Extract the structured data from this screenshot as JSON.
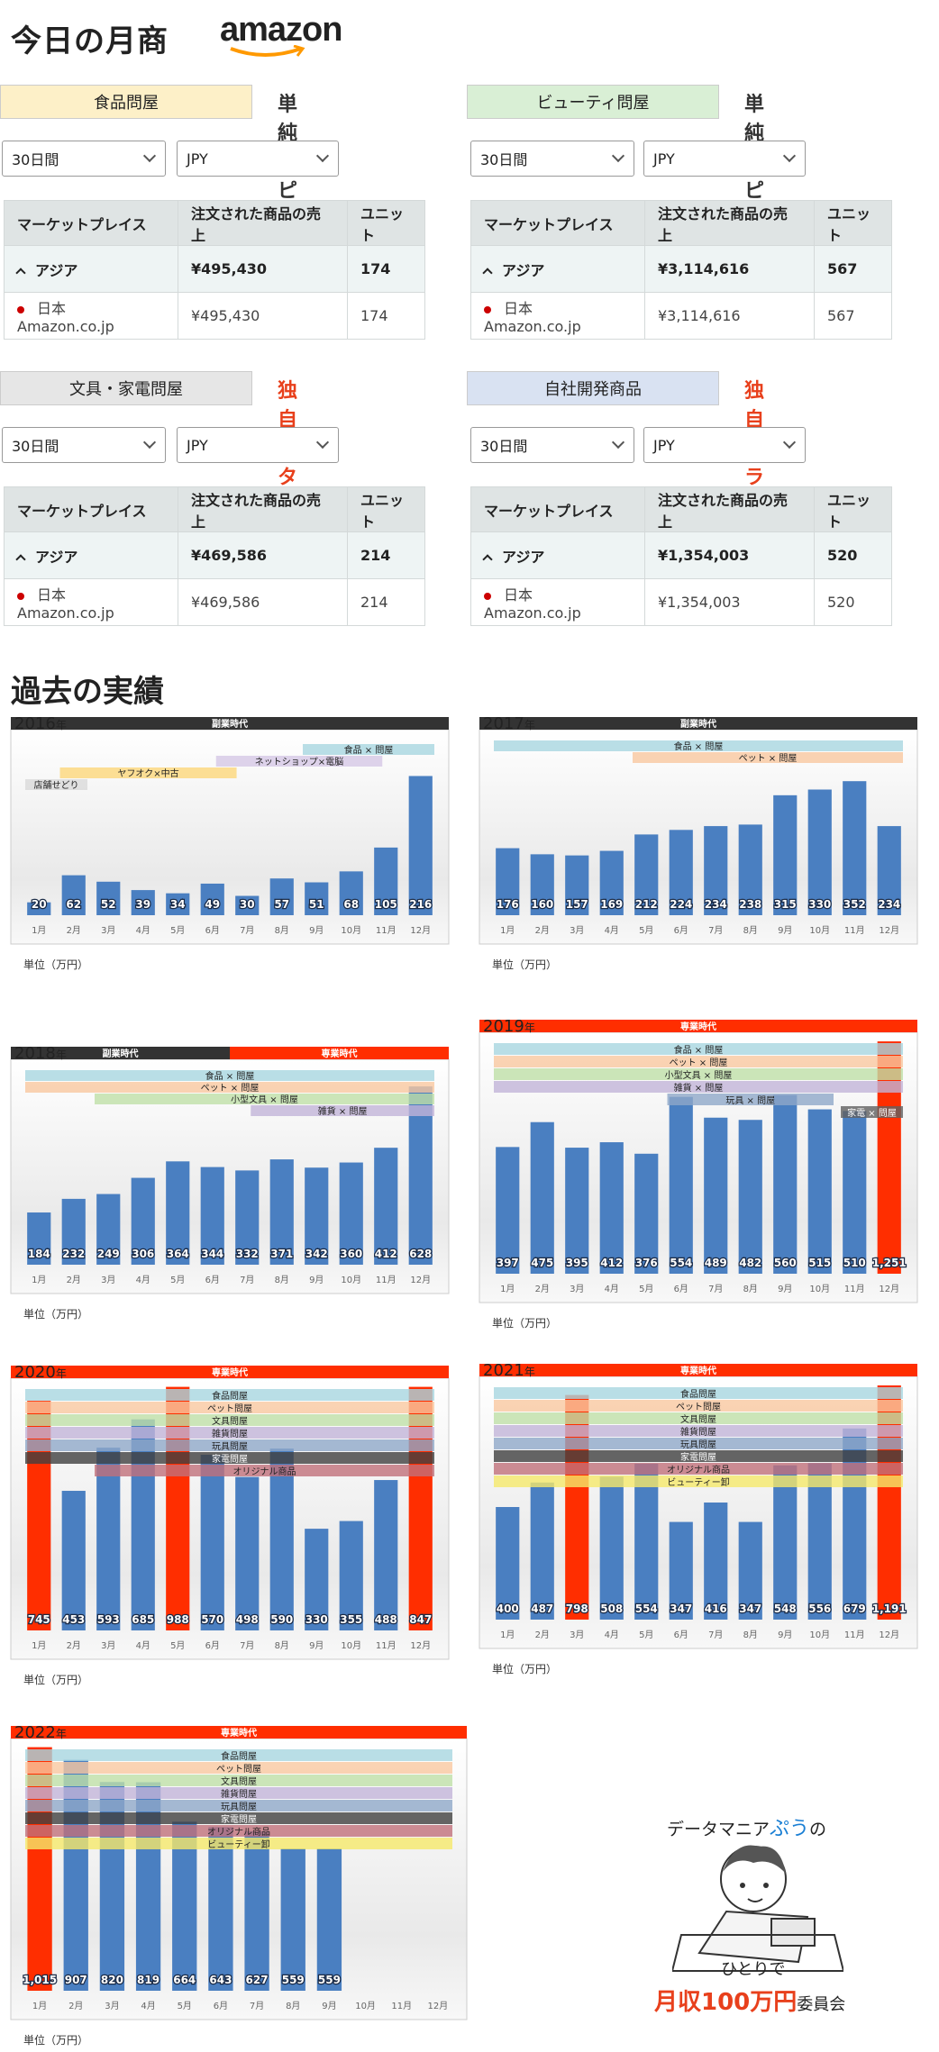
{
  "header": {
    "title": "今日の月商",
    "brand": "amazon"
  },
  "panels": [
    {
      "category": "食品問屋",
      "category_color": "#fdf0c8",
      "tag": "単純リピート",
      "tag_color": "#333333",
      "period": "30日間",
      "currency": "JPY",
      "columns": [
        "マーケットプレイス",
        "注文された商品の売上",
        "ユニット"
      ],
      "asia": {
        "name": "アジア",
        "sales": "¥495,430",
        "units": "174"
      },
      "jp": {
        "name": "日本 Amazon.co.jp",
        "sales": "¥495,430",
        "units": "174"
      }
    },
    {
      "category": "ビューティ問屋",
      "category_color": "#d9efd5",
      "tag": "単純リピート",
      "tag_color": "#333333",
      "period": "30日間",
      "currency": "JPY",
      "columns": [
        "マーケットプレイス",
        "注文された商品の売上",
        "ユニット"
      ],
      "asia": {
        "name": "アジア",
        "sales": "¥3,114,616",
        "units": "567"
      },
      "jp": {
        "name": "日本 Amazon.co.jp",
        "sales": "¥3,114,616",
        "units": "567"
      }
    },
    {
      "category": "文具・家電問屋",
      "category_color": "#e6e6e6",
      "tag": "独自カタログ",
      "tag_color": "#e8401c",
      "period": "30日間",
      "currency": "JPY",
      "columns": [
        "マーケットプレイス",
        "注文された商品の売上",
        "ユニット"
      ],
      "asia": {
        "name": "アジア",
        "sales": "¥469,586",
        "units": "214"
      },
      "jp": {
        "name": "日本 Amazon.co.jp",
        "sales": "¥469,586",
        "units": "214"
      }
    },
    {
      "category": "自社開発商品",
      "category_color": "#d9e2f2",
      "tag": "独自ブランド",
      "tag_color": "#e8401c",
      "period": "30日間",
      "currency": "JPY",
      "columns": [
        "マーケットプレイス",
        "注文された商品の売上",
        "ユニット"
      ],
      "asia": {
        "name": "アジア",
        "sales": "¥1,354,003",
        "units": "520"
      },
      "jp": {
        "name": "日本 Amazon.co.jp",
        "sales": "¥1,354,003",
        "units": "520"
      }
    }
  ],
  "past_title": "過去の実績",
  "unit_label": "単位（万円）",
  "months": [
    "1月",
    "2月",
    "3月",
    "4月",
    "5月",
    "6月",
    "7月",
    "8月",
    "9月",
    "10月",
    "11月",
    "12月"
  ],
  "year_suffix": "年",
  "chart_data": [
    {
      "type": "bar",
      "year": "2016",
      "era": [
        {
          "label": "副業時代",
          "color": "#333333",
          "span": [
            0,
            12
          ]
        }
      ],
      "values": [
        20,
        62,
        52,
        39,
        34,
        49,
        30,
        57,
        51,
        68,
        105,
        216
      ],
      "highlight": [],
      "ymax": 260,
      "bands": [
        {
          "label": "食品 × 問屋",
          "color": "#a8d6e0",
          "from": 8,
          "to": 12,
          "row": 0
        },
        {
          "label": "ネットショップ×電脳",
          "color": "#d6c8e6",
          "from": 5.5,
          "to": 10.5,
          "row": 1
        },
        {
          "label": "ヤフオク×中古",
          "color": "#fcd77a",
          "from": 1,
          "to": 6.3,
          "row": 2
        },
        {
          "label": "店舗せどり",
          "color": "#d9d9d9",
          "from": 0,
          "to": 2,
          "row": 3
        }
      ]
    },
    {
      "type": "bar",
      "year": "2017",
      "era": [
        {
          "label": "副業時代",
          "color": "#333333",
          "span": [
            0,
            12
          ]
        }
      ],
      "values": [
        176,
        160,
        157,
        169,
        212,
        224,
        234,
        238,
        315,
        330,
        352,
        234
      ],
      "highlight": [],
      "ymax": 440,
      "bands": [
        {
          "label": "食品 × 問屋",
          "color": "#a8d6e0",
          "from": 0,
          "to": 12,
          "row": 0
        },
        {
          "label": "ペット × 問屋",
          "color": "#f9c8a0",
          "from": 4,
          "to": 12,
          "row": 1
        }
      ]
    },
    {
      "type": "bar",
      "year": "2018",
      "era": [
        {
          "label": "副業時代",
          "color": "#333333",
          "span": [
            0,
            6
          ]
        },
        {
          "label": "専業時代",
          "color": "#ff2e00",
          "span": [
            6,
            12
          ]
        }
      ],
      "values": [
        184,
        232,
        249,
        306,
        364,
        344,
        332,
        371,
        342,
        360,
        412,
        628
      ],
      "highlight": [],
      "ymax": 660,
      "bands": [
        {
          "label": "食品 × 問屋",
          "color": "#a8d6e0",
          "from": 0,
          "to": 12,
          "row": 0
        },
        {
          "label": "ペット × 問屋",
          "color": "#f9c8a0",
          "from": 0,
          "to": 12,
          "row": 1
        },
        {
          "label": "小型文具 × 問屋",
          "color": "#bfe0a8",
          "from": 2,
          "to": 12,
          "row": 2
        },
        {
          "label": "雑貨 × 問屋",
          "color": "#c2b4d8",
          "from": 6.5,
          "to": 12,
          "row": 3
        }
      ]
    },
    {
      "type": "bar",
      "year": "2019",
      "era": [
        {
          "label": "専業時代",
          "color": "#ff2e00",
          "span": [
            0,
            12
          ]
        }
      ],
      "values": [
        397,
        475,
        395,
        412,
        376,
        554,
        489,
        482,
        560,
        515,
        510,
        1251
      ],
      "highlight": [
        11
      ],
      "ymax": 700,
      "bands": [
        {
          "label": "食品 × 問屋",
          "color": "#a8d6e0",
          "from": 0,
          "to": 12,
          "row": 0
        },
        {
          "label": "ペット × 問屋",
          "color": "#f9c8a0",
          "from": 0,
          "to": 12,
          "row": 1
        },
        {
          "label": "小型文具 × 問屋",
          "color": "#bfe0a8",
          "from": 0,
          "to": 12,
          "row": 2
        },
        {
          "label": "雑貨 × 問屋",
          "color": "#c2b4d8",
          "from": 0,
          "to": 12,
          "row": 3
        },
        {
          "label": "玩具 × 問屋",
          "color": "#8fa8c8",
          "from": 5,
          "to": 10,
          "row": 4
        },
        {
          "label": "家電 × 問屋",
          "color": "#606060",
          "from": 10,
          "to": 12,
          "row": 5
        }
      ]
    },
    {
      "type": "bar",
      "year": "2020",
      "era": [
        {
          "label": "専業時代",
          "color": "#ff2e00",
          "span": [
            0,
            12
          ]
        }
      ],
      "values": [
        745,
        453,
        593,
        685,
        988,
        570,
        498,
        590,
        330,
        355,
        488,
        847
      ],
      "highlight": [
        0,
        4,
        11
      ],
      "ymax": 760,
      "bands": [
        {
          "label": "食品問屋",
          "color": "#a8d6e0",
          "from": 0,
          "to": 12,
          "row": 0
        },
        {
          "label": "ペット問屋",
          "color": "#f9c8a0",
          "from": 0,
          "to": 12,
          "row": 1
        },
        {
          "label": "文具問屋",
          "color": "#bfe0a8",
          "from": 0,
          "to": 12,
          "row": 2
        },
        {
          "label": "雑貨問屋",
          "color": "#c2b4d8",
          "from": 0,
          "to": 12,
          "row": 3
        },
        {
          "label": "玩具問屋",
          "color": "#8fa8c8",
          "from": 0,
          "to": 12,
          "row": 4
        },
        {
          "label": "家電問屋",
          "color": "#404040",
          "from": 0,
          "to": 12,
          "row": 5
        },
        {
          "label": "オリジナル商品",
          "color": "#c0707a",
          "from": 2,
          "to": 12,
          "row": 6
        }
      ]
    },
    {
      "type": "bar",
      "year": "2021",
      "era": [
        {
          "label": "専業時代",
          "color": "#ff2e00",
          "span": [
            0,
            12
          ]
        }
      ],
      "values": [
        400,
        487,
        798,
        508,
        554,
        347,
        416,
        347,
        548,
        556,
        679,
        1191
      ],
      "highlight": [
        2,
        11
      ],
      "ymax": 800,
      "bands": [
        {
          "label": "食品問屋",
          "color": "#a8d6e0",
          "from": 0,
          "to": 12,
          "row": 0
        },
        {
          "label": "ペット問屋",
          "color": "#f9c8a0",
          "from": 0,
          "to": 12,
          "row": 1
        },
        {
          "label": "文具問屋",
          "color": "#bfe0a8",
          "from": 0,
          "to": 12,
          "row": 2
        },
        {
          "label": "雑貨問屋",
          "color": "#c2b4d8",
          "from": 0,
          "to": 12,
          "row": 3
        },
        {
          "label": "玩具問屋",
          "color": "#8fa8c8",
          "from": 0,
          "to": 12,
          "row": 4
        },
        {
          "label": "家電問屋",
          "color": "#404040",
          "from": 0,
          "to": 12,
          "row": 5
        },
        {
          "label": "オリジナル商品",
          "color": "#c0707a",
          "from": 0,
          "to": 12,
          "row": 6
        },
        {
          "label": "ビューティー卸",
          "color": "#f5e86a",
          "from": 0,
          "to": 12,
          "row": 7
        }
      ]
    },
    {
      "type": "bar",
      "year": "2022",
      "era": [
        {
          "label": "専業時代",
          "color": "#ff2e00",
          "span": [
            0,
            12
          ]
        }
      ],
      "values": [
        1015,
        907,
        820,
        819,
        664,
        643,
        627,
        559,
        559,
        null,
        null,
        null
      ],
      "highlight": [
        0
      ],
      "ymax": 920,
      "bands": [
        {
          "label": "食品問屋",
          "color": "#a8d6e0",
          "from": 0,
          "to": 12,
          "row": 0
        },
        {
          "label": "ペット問屋",
          "color": "#f9c8a0",
          "from": 0,
          "to": 12,
          "row": 1
        },
        {
          "label": "文具問屋",
          "color": "#bfe0a8",
          "from": 0,
          "to": 12,
          "row": 2
        },
        {
          "label": "雑貨問屋",
          "color": "#c2b4d8",
          "from": 0,
          "to": 12,
          "row": 3
        },
        {
          "label": "玩具問屋",
          "color": "#8fa8c8",
          "from": 0,
          "to": 12,
          "row": 4
        },
        {
          "label": "家電問屋",
          "color": "#404040",
          "from": 0,
          "to": 12,
          "row": 5
        },
        {
          "label": "オリジナル商品",
          "color": "#c0707a",
          "from": 0,
          "to": 12,
          "row": 6
        },
        {
          "label": "ビューティー卸",
          "color": "#f5e86a",
          "from": 0,
          "to": 12,
          "row": 7
        }
      ]
    }
  ],
  "mascot": {
    "line1a": "データマニア",
    "line1b": "ぷう",
    "line1c": "の",
    "line2": "ひとりで",
    "line3a": "月収100万円",
    "line3b": "委員会"
  }
}
